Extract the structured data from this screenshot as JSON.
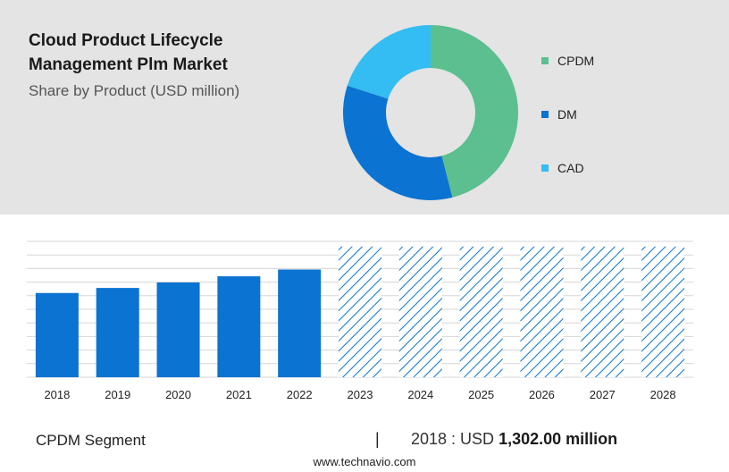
{
  "header": {
    "title": "Cloud Product Lifecycle Management Plm Market",
    "subtitle": "Share by Product (USD million)"
  },
  "legend": [
    {
      "label": "CPDM",
      "color": "#5bbf8f"
    },
    {
      "label": "DM",
      "color": "#0b73d1"
    },
    {
      "label": "CAD",
      "color": "#33bdf2"
    }
  ],
  "footer": {
    "segment": "CPDM Segment",
    "divider": "|",
    "value_prefix": "2018 : USD",
    "value_bold": "1,302.00 million"
  },
  "source": "www.technavio.com",
  "colors": {
    "bar": "#0b73d1",
    "hatch": "#0b73d1",
    "panel": "#e4e4e4",
    "grid": "#d6d6d6"
  },
  "chart_data": [
    {
      "type": "pie",
      "donut": true,
      "title": "Share by Product (USD million)",
      "series": [
        {
          "name": "CPDM",
          "value": 46
        },
        {
          "name": "DM",
          "value": 34
        },
        {
          "name": "CAD",
          "value": 20
        }
      ]
    },
    {
      "type": "bar",
      "categories": [
        "2018",
        "2019",
        "2020",
        "2021",
        "2022",
        "2023",
        "2024",
        "2025",
        "2026",
        "2027",
        "2028"
      ],
      "values": [
        1302,
        1380,
        1465,
        1560,
        1665,
        null,
        null,
        null,
        null,
        null,
        null
      ],
      "forecast": [
        false,
        false,
        false,
        false,
        false,
        true,
        true,
        true,
        true,
        true,
        true
      ],
      "forecast_level": 2020,
      "ylim": [
        0,
        2100
      ],
      "grid": true
    }
  ]
}
